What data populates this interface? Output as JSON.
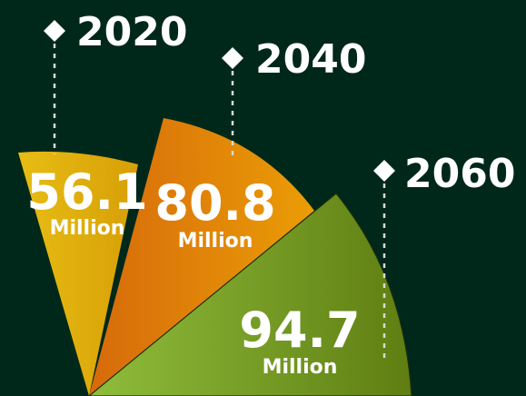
{
  "colors": {
    "background": "#00281a",
    "y2020": "#e3b40b",
    "y2040": "#e6820c",
    "y2060": "#7ea22c"
  },
  "chart_data": {
    "type": "pie",
    "unit": "Million",
    "series": [
      {
        "year": "2020",
        "value": 56.1,
        "value_label": "56.1",
        "unit": "Million"
      },
      {
        "year": "2040",
        "value": 80.8,
        "value_label": "80.8",
        "unit": "Million"
      },
      {
        "year": "2060",
        "value": 94.7,
        "value_label": "94.7",
        "unit": "Million"
      }
    ]
  }
}
